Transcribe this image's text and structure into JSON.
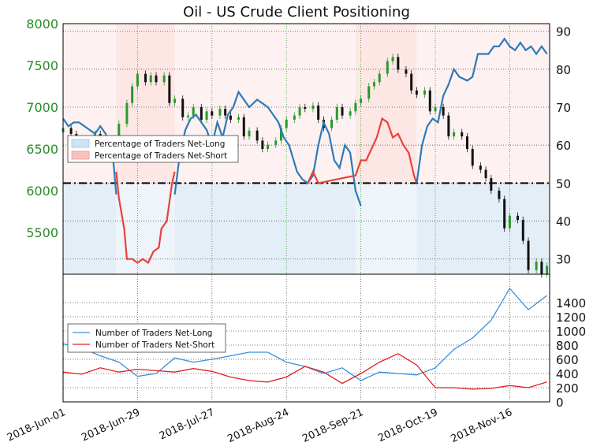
{
  "title": "Oil - US Crude Client Positioning",
  "colors": {
    "long": "#2e7ab8",
    "long_fill": "#cfe3f2",
    "short": "#e8423b",
    "short_fill": "#f6c2bf",
    "bull": "#2a9a2a",
    "bear": "#111111",
    "left_axis": "#2a8a2a"
  },
  "top_legend": {
    "long_label": "Percentage of Traders Net-Long",
    "short_label": "Percentage of Traders Net-Short"
  },
  "bottom_legend": {
    "long_label": "Number of Traders Net-Long",
    "short_label": "Number of Traders Net-Short"
  },
  "x_labels": [
    "2018-Jun-01",
    "2018-Jun-29",
    "2018-Jul-27",
    "2018-Aug-24",
    "2018-Sep-21",
    "2018-Oct-19",
    "2018-Nov-16"
  ],
  "chart_data": [
    {
      "type": "line",
      "panel": "top",
      "title": "Oil - US Crude Client Positioning",
      "left_axis": {
        "ticks": [
          "5500",
          "6000",
          "6500",
          "7000",
          "7500",
          "8000"
        ],
        "ylim": [
          5000,
          8000
        ]
      },
      "right_axis": {
        "ticks": [
          "30",
          "40",
          "50",
          "60",
          "70",
          "80",
          "90"
        ],
        "ylim": [
          26,
          92
        ]
      },
      "x_range": [
        "2018-06-01",
        "2018-12-01"
      ],
      "reference_line": 50,
      "grid": true,
      "legend": "upper-left",
      "series": [
        {
          "name": "Percentage of Traders Net-Long",
          "points": [
            [
              "2018-06-01",
              67
            ],
            [
              "2018-06-03",
              65
            ],
            [
              "2018-06-05",
              66
            ],
            [
              "2018-06-07",
              66
            ],
            [
              "2018-06-09",
              65
            ],
            [
              "2018-06-11",
              64
            ],
            [
              "2018-06-13",
              63
            ],
            [
              "2018-06-15",
              65
            ],
            [
              "2018-06-17",
              63
            ],
            [
              "2018-06-19",
              59
            ],
            [
              "2018-06-20",
              55
            ],
            [
              "2018-06-21",
              47
            ]
          ]
        },
        {
          "name": "Percentage of Traders Net-Short",
          "points": [
            [
              "2018-06-21",
              53
            ],
            [
              "2018-06-22",
              46
            ],
            [
              "2018-06-24",
              38
            ],
            [
              "2018-06-25",
              30
            ],
            [
              "2018-06-27",
              30
            ],
            [
              "2018-06-29",
              29
            ],
            [
              "2018-07-01",
              30
            ],
            [
              "2018-07-03",
              29
            ],
            [
              "2018-07-05",
              32
            ],
            [
              "2018-07-07",
              33
            ],
            [
              "2018-07-08",
              38
            ],
            [
              "2018-07-10",
              40
            ],
            [
              "2018-07-12",
              50
            ],
            [
              "2018-07-13",
              53
            ]
          ]
        },
        {
          "name": "Percentage of Traders Net-Long",
          "points": [
            [
              "2018-07-13",
              47
            ],
            [
              "2018-07-15",
              58
            ],
            [
              "2018-07-17",
              64
            ],
            [
              "2018-07-19",
              67
            ],
            [
              "2018-07-21",
              68
            ],
            [
              "2018-07-23",
              66
            ],
            [
              "2018-07-25",
              64
            ],
            [
              "2018-07-27",
              60
            ],
            [
              "2018-07-29",
              66
            ],
            [
              "2018-07-31",
              62
            ],
            [
              "2018-08-02",
              68
            ],
            [
              "2018-08-04",
              70
            ],
            [
              "2018-08-06",
              74
            ],
            [
              "2018-08-08",
              72
            ],
            [
              "2018-08-10",
              70
            ],
            [
              "2018-08-13",
              72
            ],
            [
              "2018-08-15",
              71
            ],
            [
              "2018-08-17",
              70
            ],
            [
              "2018-08-19",
              68
            ],
            [
              "2018-08-21",
              66
            ],
            [
              "2018-08-23",
              62
            ],
            [
              "2018-08-25",
              60
            ],
            [
              "2018-08-28",
              53
            ],
            [
              "2018-08-30",
              51
            ],
            [
              "2018-09-01",
              50
            ],
            [
              "2018-09-03",
              52
            ],
            [
              "2018-09-05",
              60
            ],
            [
              "2018-09-07",
              66
            ],
            [
              "2018-09-09",
              63
            ],
            [
              "2018-09-11",
              56
            ],
            [
              "2018-09-13",
              54
            ],
            [
              "2018-09-15",
              60
            ],
            [
              "2018-09-17",
              58
            ],
            [
              "2018-09-19",
              48
            ],
            [
              "2018-09-21",
              44
            ]
          ]
        },
        {
          "name": "Percentage of Traders Net-Short",
          "points": [
            [
              "2018-09-01",
              50
            ],
            [
              "2018-09-03",
              53
            ],
            [
              "2018-09-05",
              50
            ],
            [
              "2018-09-19",
              52
            ],
            [
              "2018-09-21",
              56
            ],
            [
              "2018-09-23",
              56
            ],
            [
              "2018-09-25",
              59
            ],
            [
              "2018-09-27",
              62
            ],
            [
              "2018-09-29",
              67
            ],
            [
              "2018-10-01",
              66
            ],
            [
              "2018-10-03",
              62
            ],
            [
              "2018-10-05",
              63
            ],
            [
              "2018-10-07",
              60
            ],
            [
              "2018-10-09",
              58
            ],
            [
              "2018-10-11",
              52
            ],
            [
              "2018-10-12",
              50
            ]
          ]
        },
        {
          "name": "Percentage of Traders Net-Long",
          "points": [
            [
              "2018-10-12",
              50
            ],
            [
              "2018-10-14",
              60
            ],
            [
              "2018-10-16",
              65
            ],
            [
              "2018-10-18",
              67
            ],
            [
              "2018-10-20",
              66
            ],
            [
              "2018-10-22",
              73
            ],
            [
              "2018-10-24",
              76
            ],
            [
              "2018-10-26",
              80
            ],
            [
              "2018-10-28",
              78
            ],
            [
              "2018-10-31",
              77
            ],
            [
              "2018-11-02",
              78
            ],
            [
              "2018-11-04",
              84
            ],
            [
              "2018-11-06",
              84
            ],
            [
              "2018-11-08",
              84
            ],
            [
              "2018-11-10",
              86
            ],
            [
              "2018-11-12",
              86
            ],
            [
              "2018-11-14",
              88
            ],
            [
              "2018-11-16",
              86
            ],
            [
              "2018-11-18",
              85
            ],
            [
              "2018-11-20",
              87
            ],
            [
              "2018-11-22",
              85
            ],
            [
              "2018-11-24",
              86
            ],
            [
              "2018-11-26",
              84
            ],
            [
              "2018-11-28",
              86
            ],
            [
              "2018-11-30",
              84
            ]
          ]
        }
      ],
      "price_candles": [
        [
          "2018-06-01",
          6700,
          6750
        ],
        [
          "2018-06-04",
          6750,
          6680
        ],
        [
          "2018-06-06",
          6680,
          6520
        ],
        [
          "2018-06-08",
          6520,
          6600
        ],
        [
          "2018-06-11",
          6600,
          6560
        ],
        [
          "2018-06-13",
          6560,
          6680
        ],
        [
          "2018-06-15",
          6680,
          6500
        ],
        [
          "2018-06-18",
          6500,
          6460
        ],
        [
          "2018-06-20",
          6460,
          6600
        ],
        [
          "2018-06-22",
          6600,
          6800
        ],
        [
          "2018-06-25",
          6800,
          7050
        ],
        [
          "2018-06-27",
          7050,
          7250
        ],
        [
          "2018-06-29",
          7250,
          7400
        ],
        [
          "2018-07-02",
          7400,
          7300
        ],
        [
          "2018-07-04",
          7300,
          7380
        ],
        [
          "2018-07-06",
          7380,
          7300
        ],
        [
          "2018-07-09",
          7300,
          7380
        ],
        [
          "2018-07-11",
          7380,
          7050
        ],
        [
          "2018-07-13",
          7050,
          7100
        ],
        [
          "2018-07-16",
          7100,
          6880
        ],
        [
          "2018-07-18",
          6880,
          6900
        ],
        [
          "2018-07-20",
          6900,
          7000
        ],
        [
          "2018-07-23",
          7000,
          6850
        ],
        [
          "2018-07-25",
          6850,
          6950
        ],
        [
          "2018-07-27",
          6950,
          6900
        ],
        [
          "2018-07-30",
          6900,
          6980
        ],
        [
          "2018-08-01",
          6980,
          6900
        ],
        [
          "2018-08-03",
          6900,
          6850
        ],
        [
          "2018-08-06",
          6850,
          6880
        ],
        [
          "2018-08-08",
          6880,
          6650
        ],
        [
          "2018-08-10",
          6650,
          6720
        ],
        [
          "2018-08-13",
          6720,
          6600
        ],
        [
          "2018-08-15",
          6600,
          6500
        ],
        [
          "2018-08-17",
          6500,
          6550
        ],
        [
          "2018-08-20",
          6550,
          6600
        ],
        [
          "2018-08-22",
          6600,
          6750
        ],
        [
          "2018-08-24",
          6750,
          6850
        ],
        [
          "2018-08-27",
          6850,
          6900
        ],
        [
          "2018-08-29",
          6900,
          7000
        ],
        [
          "2018-08-31",
          7000,
          6980
        ],
        [
          "2018-09-03",
          6980,
          7020
        ],
        [
          "2018-09-05",
          7020,
          6850
        ],
        [
          "2018-09-07",
          6850,
          6750
        ],
        [
          "2018-09-10",
          6750,
          6850
        ],
        [
          "2018-09-12",
          6850,
          7000
        ],
        [
          "2018-09-14",
          7000,
          6900
        ],
        [
          "2018-09-17",
          6900,
          6950
        ],
        [
          "2018-09-19",
          6950,
          7050
        ],
        [
          "2018-09-21",
          7050,
          7100
        ],
        [
          "2018-09-24",
          7100,
          7250
        ],
        [
          "2018-09-26",
          7250,
          7300
        ],
        [
          "2018-09-28",
          7300,
          7400
        ],
        [
          "2018-10-01",
          7400,
          7550
        ],
        [
          "2018-10-03",
          7550,
          7600
        ],
        [
          "2018-10-05",
          7600,
          7450
        ],
        [
          "2018-10-08",
          7450,
          7400
        ],
        [
          "2018-10-10",
          7400,
          7200
        ],
        [
          "2018-10-12",
          7200,
          7150
        ],
        [
          "2018-10-15",
          7150,
          7200
        ],
        [
          "2018-10-17",
          7200,
          6950
        ],
        [
          "2018-10-19",
          6950,
          7000
        ],
        [
          "2018-10-22",
          7000,
          6900
        ],
        [
          "2018-10-24",
          6900,
          6650
        ],
        [
          "2018-10-26",
          6650,
          6700
        ],
        [
          "2018-10-29",
          6700,
          6650
        ],
        [
          "2018-10-31",
          6650,
          6500
        ],
        [
          "2018-11-02",
          6500,
          6300
        ],
        [
          "2018-11-05",
          6300,
          6250
        ],
        [
          "2018-11-07",
          6250,
          6150
        ],
        [
          "2018-11-09",
          6150,
          6000
        ],
        [
          "2018-11-12",
          6000,
          5900
        ],
        [
          "2018-11-14",
          5900,
          5550
        ],
        [
          "2018-11-16",
          5550,
          5700
        ],
        [
          "2018-11-19",
          5700,
          5650
        ],
        [
          "2018-11-21",
          5650,
          5400
        ],
        [
          "2018-11-23",
          5400,
          5050
        ],
        [
          "2018-11-26",
          5050,
          5150
        ],
        [
          "2018-11-28",
          5150,
          5000
        ],
        [
          "2018-11-30",
          5000,
          5100
        ]
      ]
    },
    {
      "type": "line",
      "panel": "bottom",
      "left_axis": {
        "ticks": [],
        "ylim": [
          0,
          1800
        ]
      },
      "right_axis": {
        "ticks": [
          "0",
          "200",
          "400",
          "600",
          "800",
          "1000",
          "1200",
          "1400"
        ],
        "ylim": [
          0,
          1800
        ]
      },
      "x_range": [
        "2018-06-01",
        "2018-12-01"
      ],
      "grid": true,
      "legend": "center-left",
      "series": [
        {
          "name": "Number of Traders Net-Long",
          "x": [
            "2018-06-01",
            "2018-06-08",
            "2018-06-15",
            "2018-06-22",
            "2018-06-29",
            "2018-07-06",
            "2018-07-13",
            "2018-07-20",
            "2018-07-27",
            "2018-08-03",
            "2018-08-10",
            "2018-08-17",
            "2018-08-24",
            "2018-08-31",
            "2018-09-07",
            "2018-09-14",
            "2018-09-21",
            "2018-09-28",
            "2018-10-05",
            "2018-10-12",
            "2018-10-19",
            "2018-10-26",
            "2018-11-02",
            "2018-11-09",
            "2018-11-16",
            "2018-11-23",
            "2018-11-30"
          ],
          "values": [
            820,
            760,
            650,
            560,
            360,
            400,
            620,
            560,
            600,
            650,
            700,
            700,
            560,
            500,
            400,
            480,
            300,
            420,
            400,
            380,
            480,
            740,
            900,
            1150,
            1600,
            1300,
            1500
          ]
        },
        {
          "name": "Number of Traders Net-Short",
          "x": [
            "2018-06-01",
            "2018-06-08",
            "2018-06-15",
            "2018-06-22",
            "2018-06-29",
            "2018-07-06",
            "2018-07-13",
            "2018-07-20",
            "2018-07-27",
            "2018-08-03",
            "2018-08-10",
            "2018-08-17",
            "2018-08-24",
            "2018-08-31",
            "2018-09-07",
            "2018-09-14",
            "2018-09-21",
            "2018-09-28",
            "2018-10-05",
            "2018-10-12",
            "2018-10-19",
            "2018-10-26",
            "2018-11-02",
            "2018-11-09",
            "2018-11-16",
            "2018-11-23",
            "2018-11-30"
          ],
          "values": [
            420,
            390,
            480,
            420,
            460,
            440,
            420,
            470,
            430,
            350,
            300,
            280,
            350,
            500,
            420,
            260,
            400,
            560,
            680,
            520,
            200,
            200,
            180,
            190,
            230,
            200,
            280
          ]
        }
      ]
    }
  ]
}
